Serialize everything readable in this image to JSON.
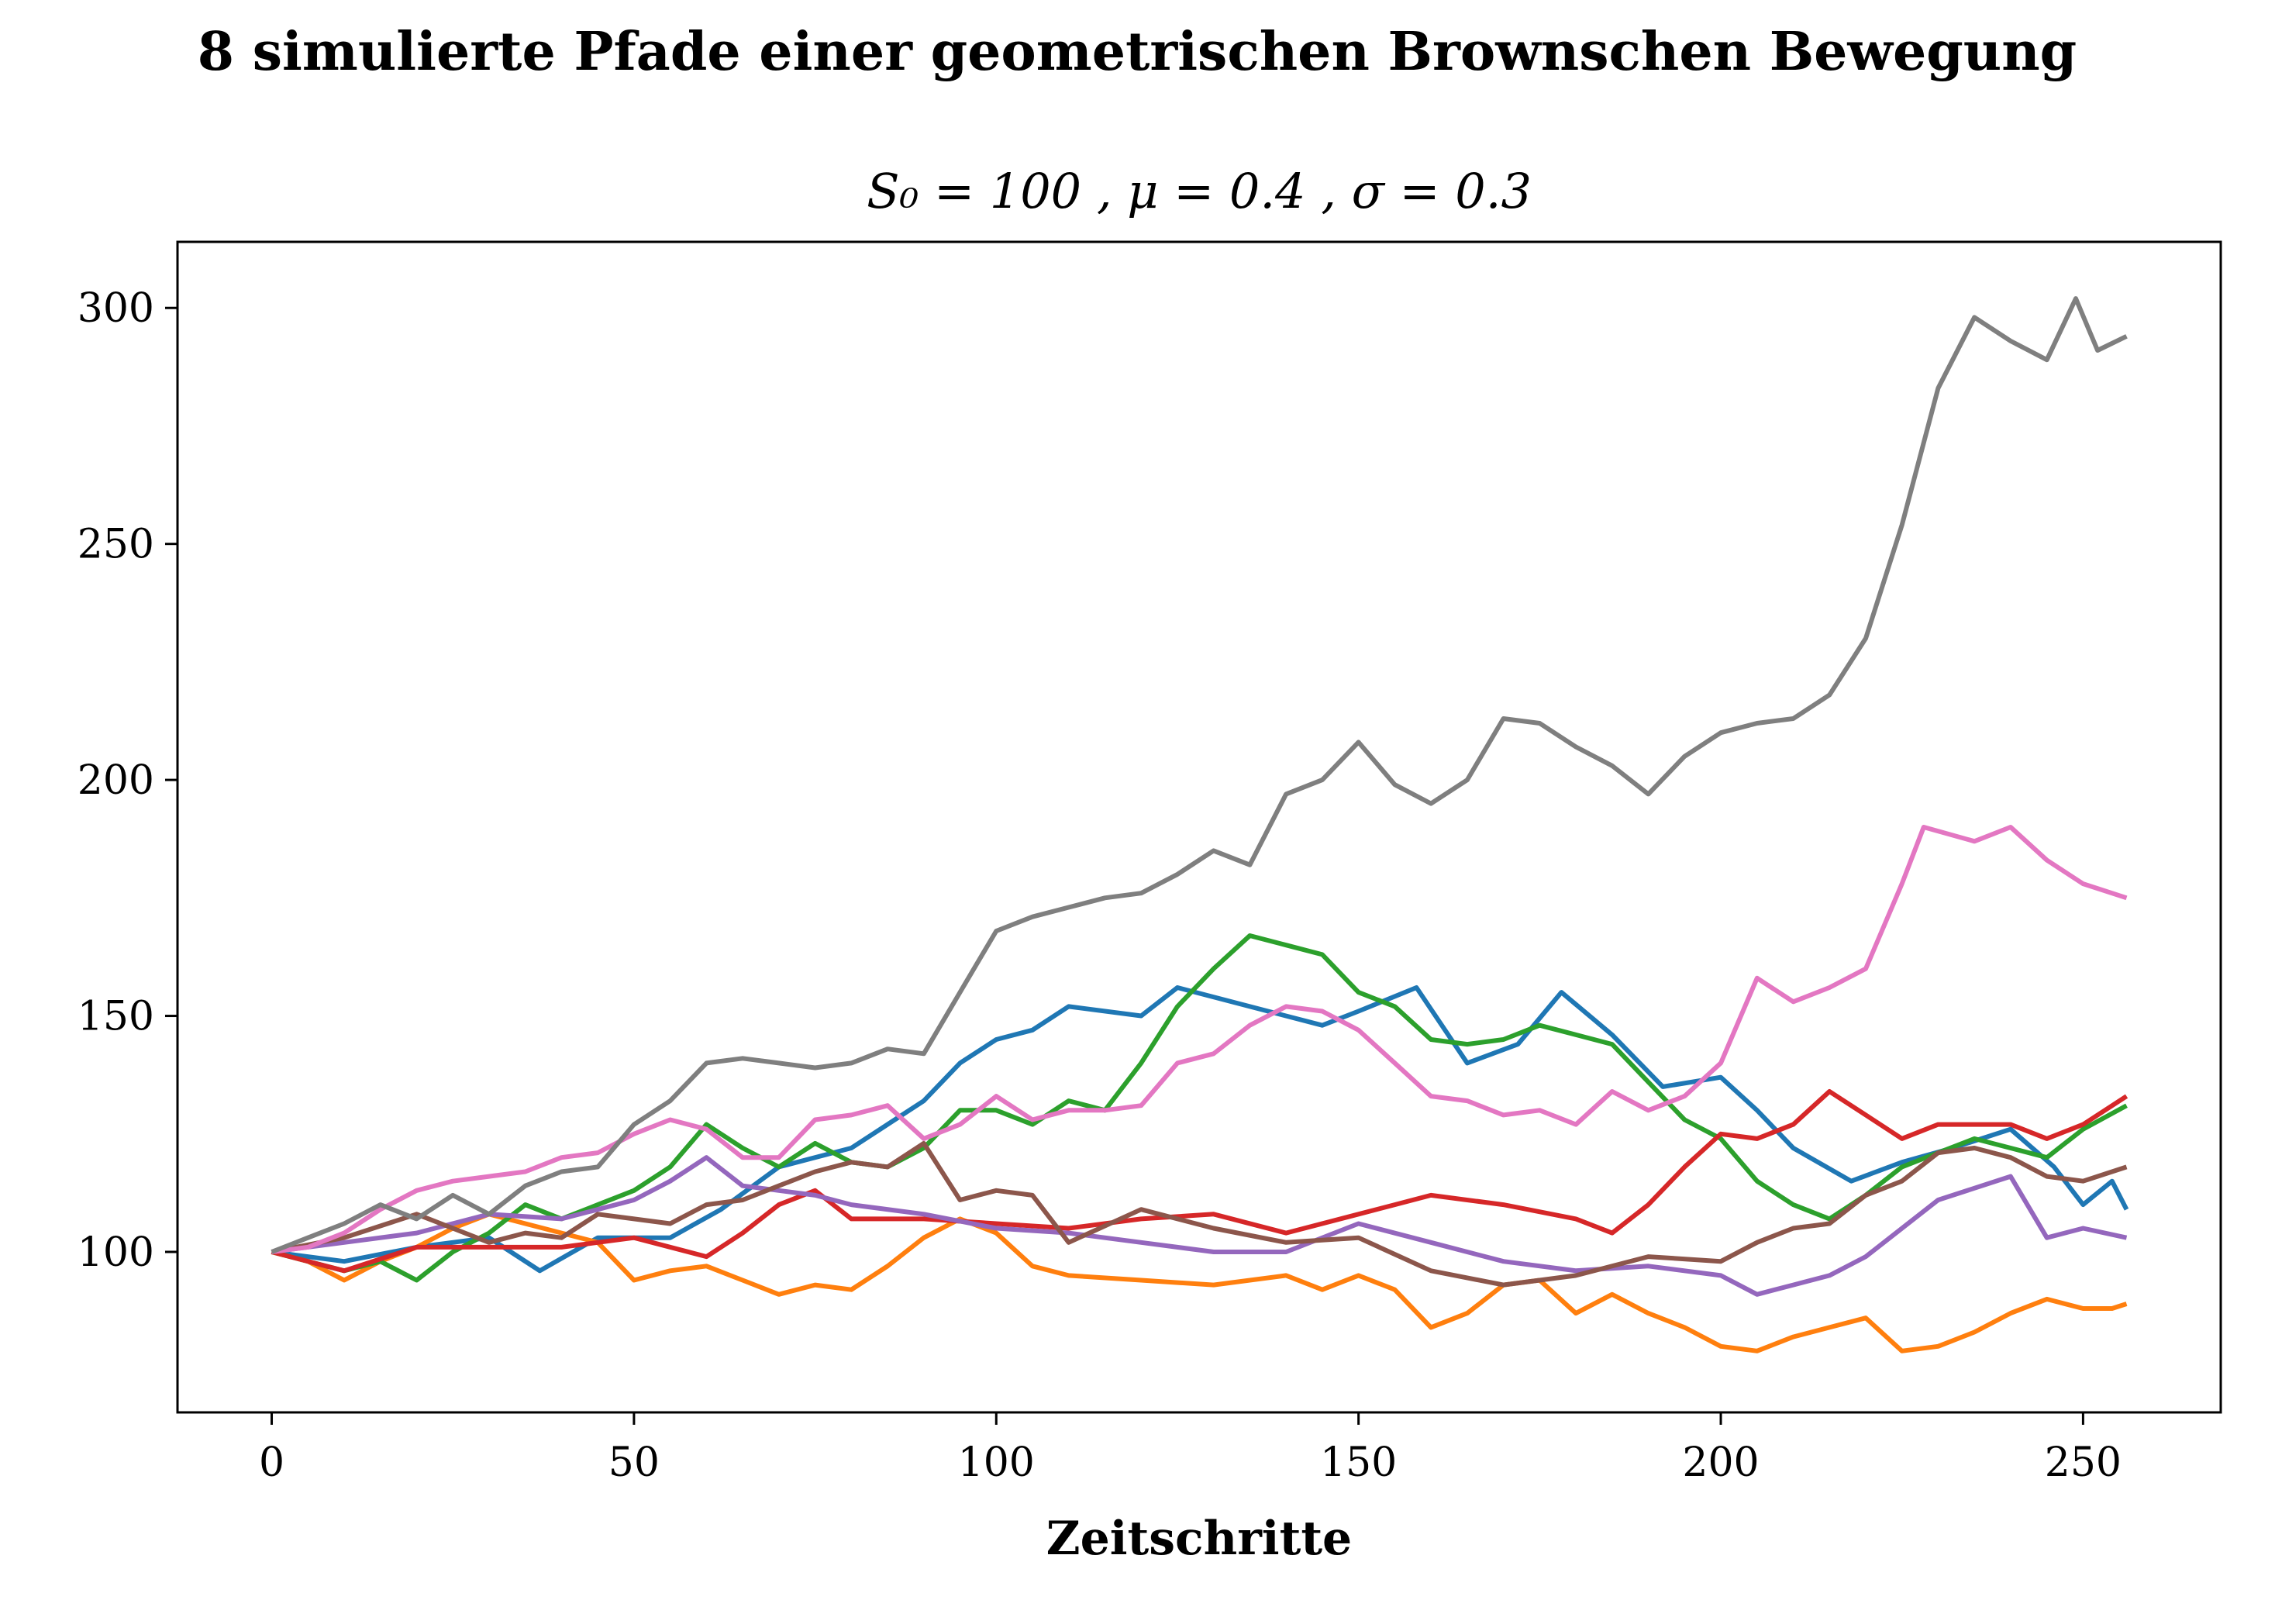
{
  "chart_data": {
    "type": "line",
    "title": "8 simulierte Pfade einer geometrischen Brownschen Bewegung",
    "subtitle": "S₀ = 100 ,   μ = 0.4 ,   σ = 0.3",
    "xlabel": "Zeitschritte",
    "ylabel": "",
    "xlim": [
      -13,
      269
    ],
    "ylim": [
      66,
      314
    ],
    "xticks": [
      0,
      50,
      100,
      150,
      200,
      250
    ],
    "yticks": [
      100,
      150,
      200,
      250,
      300
    ],
    "grid": false,
    "legend": false,
    "series": [
      {
        "color": "#1f77b4",
        "x": [
          0,
          10,
          20,
          30,
          37,
          45,
          55,
          62,
          70,
          80,
          90,
          95,
          100,
          105,
          110,
          120,
          125,
          135,
          145,
          150,
          158,
          165,
          172,
          178,
          185,
          192,
          200,
          205,
          210,
          218,
          225,
          232,
          240,
          246,
          250,
          254,
          256
        ],
        "y": [
          100,
          98,
          101,
          103,
          96,
          103,
          103,
          109,
          118,
          122,
          132,
          140,
          145,
          147,
          152,
          150,
          156,
          152,
          148,
          151,
          156,
          140,
          144,
          155,
          146,
          135,
          137,
          130,
          122,
          115,
          119,
          122,
          126,
          118,
          110,
          115,
          109
        ]
      },
      {
        "color": "#ff7f0e",
        "x": [
          0,
          5,
          10,
          15,
          20,
          25,
          30,
          35,
          40,
          45,
          50,
          55,
          60,
          65,
          70,
          75,
          80,
          85,
          90,
          95,
          100,
          105,
          110,
          120,
          130,
          140,
          145,
          150,
          155,
          160,
          165,
          170,
          175,
          180,
          185,
          190,
          195,
          200,
          205,
          210,
          215,
          220,
          225,
          230,
          235,
          240,
          245,
          250,
          254,
          256
        ],
        "y": [
          100,
          98,
          94,
          98,
          101,
          105,
          108,
          106,
          104,
          102,
          94,
          96,
          97,
          94,
          91,
          93,
          92,
          97,
          103,
          107,
          104,
          97,
          95,
          94,
          93,
          95,
          92,
          95,
          92,
          84,
          87,
          93,
          94,
          87,
          91,
          87,
          84,
          80,
          79,
          82,
          84,
          86,
          79,
          80,
          83,
          87,
          90,
          88,
          88,
          89
        ]
      },
      {
        "color": "#2ca02c",
        "x": [
          0,
          10,
          15,
          20,
          25,
          30,
          35,
          40,
          45,
          50,
          55,
          60,
          65,
          70,
          75,
          80,
          85,
          90,
          95,
          100,
          105,
          110,
          115,
          120,
          125,
          130,
          135,
          140,
          145,
          150,
          155,
          160,
          165,
          170,
          175,
          180,
          185,
          190,
          195,
          200,
          205,
          210,
          215,
          220,
          225,
          230,
          235,
          240,
          245,
          250,
          256
        ],
        "y": [
          100,
          96,
          98,
          94,
          100,
          104,
          110,
          107,
          110,
          113,
          118,
          127,
          122,
          118,
          123,
          119,
          118,
          122,
          130,
          130,
          127,
          132,
          130,
          140,
          152,
          160,
          167,
          165,
          163,
          155,
          152,
          145,
          144,
          145,
          148,
          146,
          144,
          136,
          128,
          124,
          115,
          110,
          107,
          112,
          118,
          121,
          124,
          122,
          120,
          126,
          131
        ]
      },
      {
        "color": "#d62728",
        "x": [
          0,
          10,
          20,
          30,
          40,
          50,
          60,
          65,
          70,
          75,
          80,
          90,
          100,
          110,
          120,
          130,
          140,
          150,
          155,
          160,
          170,
          180,
          185,
          190,
          195,
          200,
          205,
          210,
          215,
          220,
          225,
          230,
          240,
          245,
          250,
          256
        ],
        "y": [
          100,
          96,
          101,
          101,
          101,
          103,
          99,
          104,
          110,
          113,
          107,
          107,
          106,
          105,
          107,
          108,
          104,
          108,
          110,
          112,
          110,
          107,
          104,
          110,
          118,
          125,
          124,
          127,
          134,
          129,
          124,
          127,
          127,
          124,
          127,
          133
        ]
      },
      {
        "color": "#9467bd",
        "x": [
          0,
          10,
          20,
          30,
          40,
          50,
          55,
          60,
          65,
          70,
          75,
          80,
          90,
          100,
          110,
          120,
          130,
          140,
          150,
          160,
          170,
          180,
          190,
          200,
          205,
          210,
          215,
          220,
          230,
          240,
          245,
          250,
          256
        ],
        "y": [
          100,
          102,
          104,
          108,
          107,
          111,
          115,
          120,
          114,
          113,
          112,
          110,
          108,
          105,
          104,
          102,
          100,
          100,
          106,
          102,
          98,
          96,
          97,
          95,
          91,
          93,
          95,
          99,
          111,
          116,
          103,
          105,
          103
        ]
      },
      {
        "color": "#8c564b",
        "x": [
          0,
          10,
          20,
          25,
          30,
          35,
          40,
          45,
          50,
          55,
          60,
          65,
          70,
          75,
          80,
          85,
          90,
          95,
          100,
          105,
          110,
          120,
          130,
          140,
          150,
          160,
          170,
          180,
          190,
          200,
          205,
          210,
          215,
          220,
          225,
          230,
          235,
          240,
          245,
          250,
          256
        ],
        "y": [
          100,
          103,
          108,
          105,
          102,
          104,
          103,
          108,
          107,
          106,
          110,
          111,
          114,
          117,
          119,
          118,
          123,
          111,
          113,
          112,
          102,
          109,
          105,
          102,
          103,
          96,
          93,
          95,
          99,
          98,
          102,
          105,
          106,
          112,
          115,
          121,
          122,
          120,
          116,
          115,
          118
        ]
      },
      {
        "color": "#e377c2",
        "x": [
          0,
          5,
          10,
          15,
          20,
          25,
          30,
          35,
          40,
          45,
          50,
          55,
          60,
          65,
          70,
          75,
          80,
          85,
          90,
          95,
          100,
          105,
          110,
          115,
          120,
          125,
          130,
          135,
          140,
          145,
          150,
          155,
          160,
          165,
          170,
          175,
          180,
          185,
          190,
          195,
          200,
          205,
          210,
          215,
          220,
          225,
          228,
          235,
          240,
          245,
          250,
          256
        ],
        "y": [
          100,
          101,
          104,
          109,
          113,
          115,
          116,
          117,
          120,
          121,
          125,
          128,
          126,
          120,
          120,
          128,
          129,
          131,
          124,
          127,
          133,
          128,
          130,
          130,
          131,
          140,
          142,
          148,
          152,
          151,
          147,
          140,
          133,
          132,
          129,
          130,
          127,
          134,
          130,
          133,
          140,
          158,
          153,
          156,
          160,
          178,
          190,
          187,
          190,
          183,
          178,
          175
        ]
      },
      {
        "color": "#7f7f7f",
        "x": [
          0,
          5,
          10,
          15,
          20,
          25,
          30,
          35,
          40,
          45,
          50,
          55,
          60,
          65,
          70,
          75,
          80,
          85,
          90,
          95,
          100,
          105,
          110,
          115,
          120,
          125,
          130,
          135,
          140,
          145,
          150,
          155,
          160,
          165,
          170,
          175,
          180,
          185,
          190,
          195,
          200,
          205,
          210,
          215,
          220,
          225,
          230,
          235,
          240,
          245,
          249,
          252,
          256
        ],
        "y": [
          100,
          103,
          106,
          110,
          107,
          112,
          108,
          114,
          117,
          118,
          127,
          132,
          140,
          141,
          140,
          139,
          140,
          143,
          142,
          155,
          168,
          171,
          173,
          175,
          176,
          180,
          185,
          182,
          197,
          200,
          208,
          199,
          195,
          200,
          213,
          212,
          207,
          203,
          197,
          205,
          210,
          212,
          213,
          218,
          230,
          254,
          283,
          298,
          293,
          289,
          302,
          291,
          294
        ]
      }
    ]
  }
}
